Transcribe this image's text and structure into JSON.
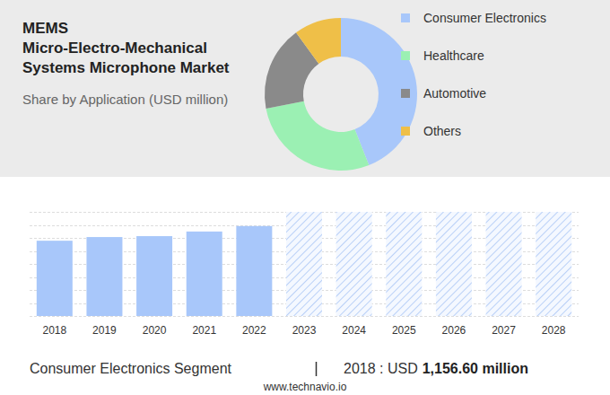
{
  "chart_data": [
    {
      "type": "pie",
      "title": [
        "MEMS",
        "Micro-Electro-Mechanical",
        "Systems Microphone Market"
      ],
      "subtitle": "Share by Application (USD million)",
      "categories": [
        "Consumer Electronics",
        "Healthcare",
        "Automotive",
        "Others"
      ],
      "values": [
        44,
        28,
        18,
        10
      ],
      "colors": [
        "#a8c7fa",
        "#9bf0b3",
        "#8a8a8a",
        "#efbf48"
      ],
      "legend": "right"
    },
    {
      "type": "bar",
      "categories": [
        "2018",
        "2019",
        "2020",
        "2021",
        "2022",
        "2023",
        "2024",
        "2025",
        "2026",
        "2027",
        "2028"
      ],
      "values": [
        1156.6,
        1213,
        1227,
        1298,
        1382,
        null,
        null,
        null,
        null,
        null,
        null
      ],
      "color": "#a8c7fa",
      "ylim": [
        0,
        1600
      ],
      "yticks": [
        0,
        200,
        400,
        600,
        800,
        1000,
        1200,
        1400,
        1600
      ],
      "grid": true,
      "tick_labels": "x"
    }
  ],
  "footer": {
    "segment": "Consumer Electronics Segment",
    "prefix": "2018 : USD",
    "amount": "1,156.60 million",
    "source": "www.technavio.io"
  }
}
